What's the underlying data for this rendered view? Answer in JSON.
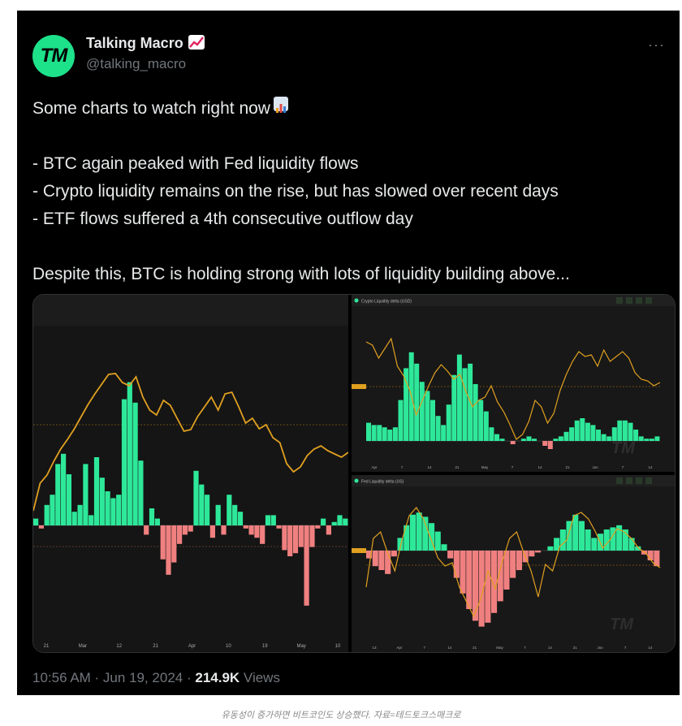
{
  "tweet": {
    "avatar_text": "TM",
    "display_name": "Talking Macro",
    "name_emoji": "chart-increasing-icon",
    "handle": "@talking_macro",
    "more_label": "···",
    "lines": [
      "Some charts to watch right now",
      "- BTC again peaked with Fed liquidity flows",
      "- Crypto liquidity remains on the rise, but has slowed over recent days",
      "- ETF flows suffered a 4th consecutive outflow day",
      "Despite this, BTC is holding strong with lots of liquidity building above..."
    ],
    "timestamp": "10:56 AM · Jun 19, 2024 · ",
    "views_count": "214.9K",
    "views_label": " Views"
  },
  "media": {
    "left_chart": {
      "x_ticks": [
        "21",
        "Mar",
        "12",
        "21",
        "Apr",
        "10",
        "19",
        "May",
        "10"
      ]
    },
    "top_right_chart": {
      "title": "Crypto Liquidity delta (USD)",
      "watermark": "TM",
      "x_ticks": [
        "Apr",
        "7",
        "14",
        "21",
        "May",
        "7",
        "14",
        "21",
        "Jun",
        "7",
        "14"
      ]
    },
    "bottom_right_chart": {
      "title": "Fed Liquidity delta (US)",
      "watermark": "TM",
      "x_ticks": [
        "13",
        "Apr",
        "7",
        "14",
        "21",
        "May",
        "7",
        "14",
        "21",
        "Jun",
        "7",
        "14"
      ]
    }
  },
  "colors": {
    "bar_up": "#2ee89a",
    "bar_down": "#f08080",
    "line": "#e0a020",
    "background": "#000000"
  },
  "caption": "유동성이 증가하면 비트코인도 상승했다. 자료=테드토크스매크로"
}
